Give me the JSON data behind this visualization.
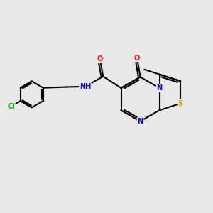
{
  "bg_color": "#e8e8e8",
  "bond_color": "#000000",
  "atom_colors": {
    "O": "#ff0000",
    "N": "#0000ff",
    "S": "#ccaa00",
    "Cl": "#00aa00",
    "C": "#000000",
    "H": "#000000"
  },
  "lw": 1.5,
  "fs": 7.0,
  "xlim": [
    0,
    10
  ],
  "ylim": [
    0,
    10
  ]
}
